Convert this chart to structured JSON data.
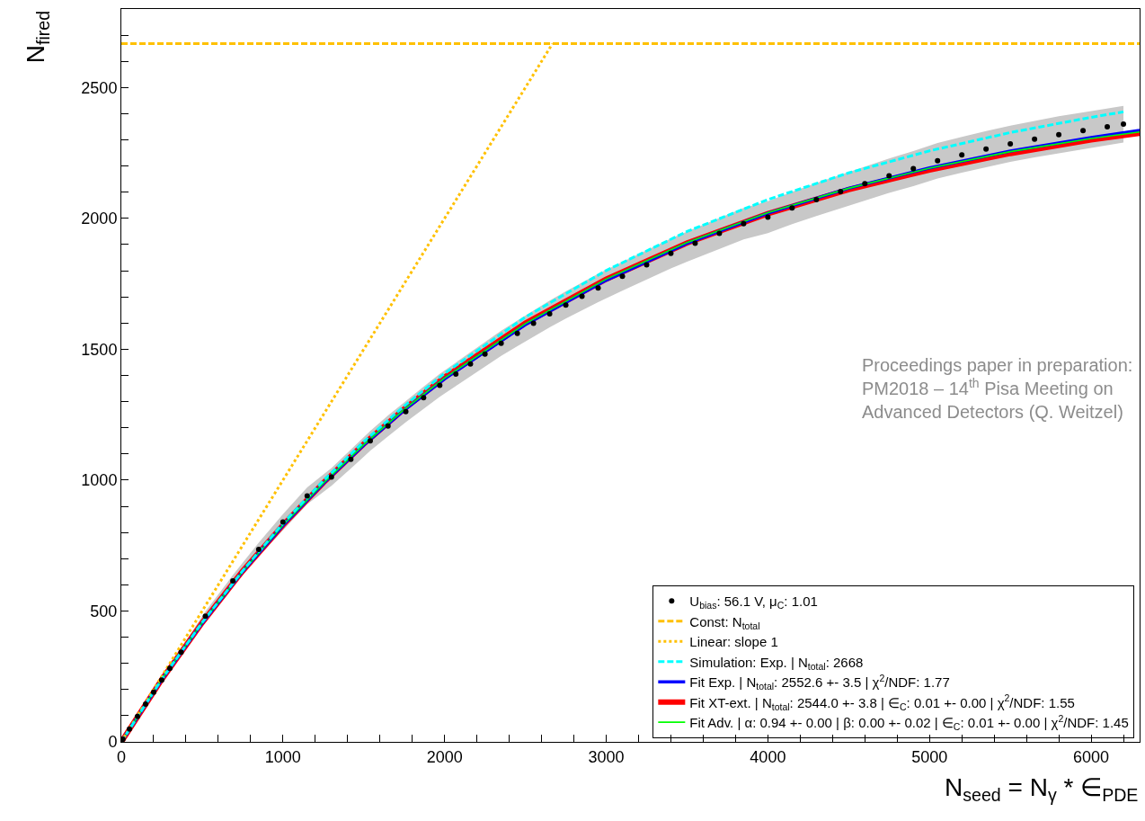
{
  "chart_data": {
    "type": "line",
    "xlabel": "N$_{seed}$ = N$_{γ}$ * ∈$_{PDE}$",
    "ylabel": "N$_{fired}$",
    "xlim": [
      0,
      6300
    ],
    "ylim": [
      0,
      2800
    ],
    "xticks": [
      0,
      {
        "value": 200,
        "label": null
      },
      {
        "value": 400,
        "label": null
      },
      {
        "value": 600,
        "label": null
      },
      {
        "value": 800,
        "label": null
      },
      1000,
      {
        "value": 1200,
        "label": null
      },
      {
        "value": 1400,
        "label": null
      },
      {
        "value": 1600,
        "label": null
      },
      {
        "value": 1800,
        "label": null
      },
      2000,
      {
        "value": 2200,
        "label": null
      },
      {
        "value": 2400,
        "label": null
      },
      {
        "value": 2600,
        "label": null
      },
      {
        "value": 2800,
        "label": null
      },
      3000,
      {
        "value": 3200,
        "label": null
      },
      {
        "value": 3400,
        "label": null
      },
      {
        "value": 3600,
        "label": null
      },
      {
        "value": 3800,
        "label": null
      },
      4000,
      {
        "value": 4200,
        "label": null
      },
      {
        "value": 4400,
        "label": null
      },
      {
        "value": 4600,
        "label": null
      },
      {
        "value": 4800,
        "label": null
      },
      5000,
      {
        "value": 5200,
        "label": null
      },
      {
        "value": 5400,
        "label": null
      },
      {
        "value": 5600,
        "label": null
      },
      {
        "value": 5800,
        "label": null
      },
      6000,
      {
        "value": 6200,
        "label": null
      }
    ],
    "yticks": [
      0,
      {
        "value": 100,
        "label": null
      },
      {
        "value": 200,
        "label": null
      },
      {
        "value": 300,
        "label": null
      },
      {
        "value": 400,
        "label": null
      },
      500,
      {
        "value": 600,
        "label": null
      },
      {
        "value": 700,
        "label": null
      },
      {
        "value": 800,
        "label": null
      },
      {
        "value": 900,
        "label": null
      },
      1000,
      {
        "value": 1100,
        "label": null
      },
      {
        "value": 1200,
        "label": null
      },
      {
        "value": 1300,
        "label": null
      },
      {
        "value": 1400,
        "label": null
      },
      1500,
      {
        "value": 1600,
        "label": null
      },
      {
        "value": 1700,
        "label": null
      },
      {
        "value": 1800,
        "label": null
      },
      {
        "value": 1900,
        "label": null
      },
      2000,
      {
        "value": 2100,
        "label": null
      },
      {
        "value": 2200,
        "label": null
      },
      {
        "value": 2300,
        "label": null
      },
      {
        "value": 2400,
        "label": null
      },
      2500,
      {
        "value": 2600,
        "label": null
      },
      {
        "value": 2700,
        "label": null
      }
    ],
    "legend": "bottom right",
    "series": [
      {
        "name": "U$_{bias}$: 56.1 V, μ$_{C}$: 1.01",
        "type": "scatter",
        "marker": "circle",
        "color": "#000000",
        "x": [
          10,
          50,
          100,
          150,
          200,
          250,
          300,
          370,
          520,
          690,
          850,
          1000,
          1150,
          1300,
          1420,
          1540,
          1650,
          1760,
          1870,
          1970,
          2070,
          2160,
          2250,
          2350,
          2450,
          2550,
          2650,
          2750,
          2850,
          2950,
          3100,
          3250,
          3400,
          3550,
          3700,
          3850,
          4000,
          4150,
          4300,
          4450,
          4600,
          4750,
          4900,
          5050,
          5200,
          5350,
          5500,
          5650,
          5800,
          5950,
          6100,
          6200
        ],
        "values": [
          10,
          49,
          97,
          144,
          190,
          236,
          281,
          343,
          480,
          615,
          735,
          840,
          940,
          1012,
          1080,
          1150,
          1207,
          1262,
          1315,
          1362,
          1405,
          1444,
          1482,
          1523,
          1561,
          1599,
          1635,
          1669,
          1702,
          1734,
          1779,
          1823,
          1866,
          1905,
          1943,
          1980,
          2005,
          2040,
          2072,
          2103,
          2133,
          2163,
          2190,
          2220,
          2243,
          2265,
          2285,
          2303,
          2320,
          2335,
          2350,
          2360
        ],
        "lower": [
          5,
          43,
          89,
          135,
          180,
          225,
          269,
          329,
          462,
          593,
          709,
          810,
          908,
          978,
          1044,
          1112,
          1167,
          1221,
          1273,
          1318,
          1360,
          1398,
          1435,
          1475,
          1512,
          1549,
          1584,
          1617,
          1649,
          1680,
          1724,
          1767,
          1809,
          1847,
          1884,
          1920,
          1944,
          1978,
          2009,
          2039,
          2068,
          2097,
          2123,
          2152,
          2175,
          2196,
          2216,
          2233,
          2250,
          2265,
          2280,
          2290
        ],
        "upper": [
          15,
          55,
          105,
          153,
          200,
          247,
          293,
          357,
          498,
          637,
          761,
          870,
          972,
          1046,
          1116,
          1188,
          1247,
          1303,
          1357,
          1406,
          1450,
          1490,
          1529,
          1571,
          1610,
          1649,
          1686,
          1721,
          1755,
          1788,
          1834,
          1879,
          1923,
          1963,
          2002,
          2040,
          2066,
          2102,
          2135,
          2167,
          2198,
          2229,
          2257,
          2288,
          2311,
          2334,
          2354,
          2373,
          2390,
          2405,
          2420,
          2430
        ]
      },
      {
        "name": "Const: N$_{total}$",
        "color": "#ffc000",
        "line_style": "dashed",
        "x": [
          0,
          6300
        ],
        "values": [
          2668,
          2668
        ]
      },
      {
        "name": "Linear: slope 1",
        "color": "#ffc000",
        "line_style": "dotted",
        "x": [
          0,
          2668
        ],
        "values": [
          0,
          2668
        ]
      },
      {
        "name": "Simulation: Exp. | N$_{total}$: 2668",
        "color": "#00ffff",
        "line_style": "dashed",
        "x": [
          0,
          250,
          500,
          750,
          1000,
          1250,
          1500,
          1750,
          2000,
          2500,
          3000,
          3500,
          4000,
          4500,
          5000,
          5500,
          6000,
          6200
        ],
        "values": [
          0,
          239,
          456,
          653,
          835,
          998,
          1147,
          1283,
          1408,
          1623,
          1801,
          1950,
          2072,
          2174,
          2258,
          2328,
          2386,
          2407
        ]
      },
      {
        "name": "Fit Exp. | N$_{total}$: 2552.6 +- 3.5 | χ$^{2}$/NDF: 1.77",
        "color": "#0000ff",
        "line_style": "solid",
        "x": [
          0,
          250,
          500,
          750,
          1000,
          1250,
          1500,
          1750,
          2000,
          2500,
          3000,
          3500,
          4000,
          4500,
          5000,
          5500,
          6000,
          6300
        ],
        "values": [
          0,
          238,
          454,
          651,
          827,
          988,
          1134,
          1267,
          1387,
          1594,
          1764,
          1905,
          2020,
          2115,
          2193,
          2257,
          2309,
          2336
        ]
      },
      {
        "name": "Fit XT-ext. | N$_{total}$: 2544.0 +- 3.8 | ∈$_{C}$: 0.01 +- 0.00 | χ$^{2}$/NDF: 1.55",
        "color": "#ff0000",
        "line_style": "solid",
        "x": [
          0,
          250,
          500,
          750,
          1000,
          1250,
          1500,
          1750,
          2000,
          2500,
          3000,
          3500,
          4000,
          4500,
          5000,
          5500,
          6000,
          6300
        ],
        "values": [
          0,
          238,
          455,
          652,
          828,
          990,
          1138,
          1272,
          1393,
          1600,
          1768,
          1906,
          2018,
          2110,
          2185,
          2248,
          2300,
          2325
        ]
      },
      {
        "name": "Fit Adv. | α: 0.94 +- 0.00 | β: 0.00 +- 0.02 | ∈$_{C}$: 0.01 +- 0.00 | χ$^{2}$/NDF: 1.45",
        "color": "#00ff00",
        "line_style": "solid",
        "x": [
          0,
          250,
          500,
          750,
          1000,
          1250,
          1500,
          1750,
          2000,
          2500,
          3000,
          3500,
          4000,
          4500,
          5000,
          5500,
          6000,
          6300
        ],
        "values": [
          0,
          239,
          455,
          651,
          828,
          989,
          1136,
          1270,
          1390,
          1598,
          1768,
          1908,
          2022,
          2115,
          2192,
          2255,
          2305,
          2330
        ]
      }
    ],
    "annotations": [
      "Proceedings paper in preparation:\nPM2018 – 14$^{th}$ Pisa Meeting on\nAdvanced Detectors (Q. Weitzel)"
    ]
  }
}
